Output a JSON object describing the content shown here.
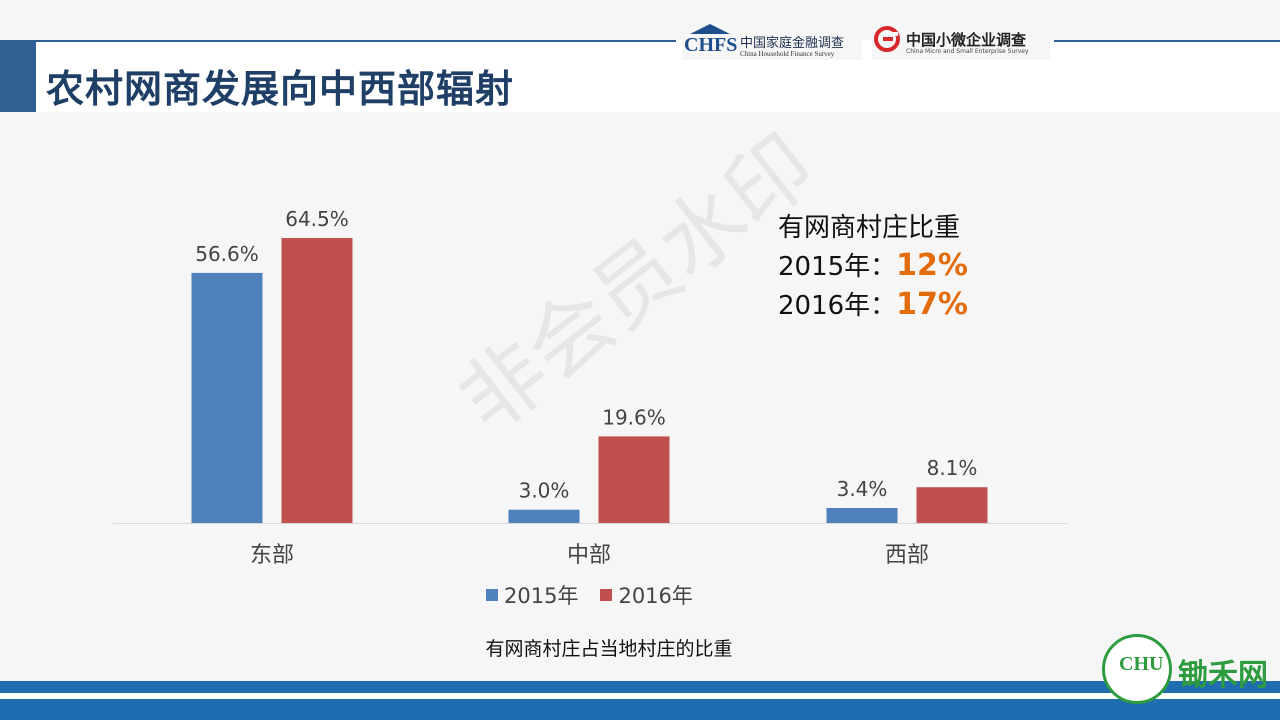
{
  "header": {
    "title": "农村网商发展向中西部辐射",
    "logo_chfs": {
      "mark": "CHFS",
      "cn": "中国家庭金融调查",
      "en": "China Household Finance Survey"
    },
    "logo_micro": {
      "cn": "中国小微企业调查",
      "en": "China Micro and Small Enterprise Survey"
    }
  },
  "watermark": "非会员水印",
  "annotation": {
    "heading": "有网商村庄比重",
    "row1_label": "2015年：",
    "row1_value": "12%",
    "row2_label": "2016年：",
    "row2_value": "17%"
  },
  "caption": "有网商村庄占当地村庄的比重",
  "brand": {
    "name": "锄禾网"
  },
  "colors": {
    "series_2015": "#4f81bd",
    "series_2016": "#c0504d",
    "highlight": "#e36c0a",
    "title": "#1f3f66",
    "band": "#1f6cb0"
  },
  "chart_data": {
    "type": "bar",
    "categories": [
      "东部",
      "中部",
      "西部"
    ],
    "series": [
      {
        "name": "2015年",
        "values": [
          56.6,
          3.0,
          3.4
        ],
        "labels": [
          "56.6%",
          "3.0%",
          "3.4%"
        ],
        "color": "#4f81bd"
      },
      {
        "name": "2016年",
        "values": [
          64.5,
          19.6,
          8.1
        ],
        "labels": [
          "64.5%",
          "19.6%",
          "8.1%"
        ],
        "color": "#c0504d"
      }
    ],
    "ylim": [
      0,
      70
    ],
    "grid": false,
    "legend": "bottom"
  }
}
